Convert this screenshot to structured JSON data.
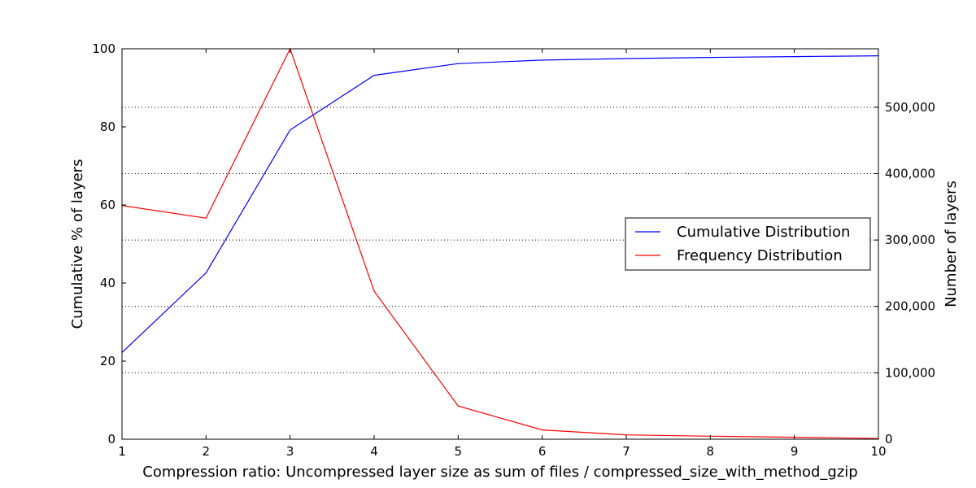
{
  "chart_data": {
    "type": "line",
    "xlabel": "Compression ratio: Uncompressed layer size as sum of files / compressed_size_with_method_gzip",
    "ylabel": "Cumulative % of layers",
    "y2label": "Number of layers",
    "x": [
      1,
      2,
      3,
      4,
      5,
      6,
      7,
      8,
      9,
      10
    ],
    "xlim": [
      1,
      10
    ],
    "ylim": [
      0,
      100
    ],
    "y2lim": [
      0,
      588000
    ],
    "x_ticks": [
      "1",
      "2",
      "3",
      "4",
      "5",
      "6",
      "7",
      "8",
      "9",
      "10"
    ],
    "y_ticks": [
      "0",
      "20",
      "40",
      "60",
      "80",
      "100"
    ],
    "y2_ticks": [
      "0",
      "100,000",
      "200,000",
      "300,000",
      "400,000",
      "500,000"
    ],
    "grid": "horizontal dotted (secondary axis)",
    "legend_position": "center-right",
    "series": [
      {
        "name": "Cumulative Distribution",
        "axis": "left",
        "color": "#0000ff",
        "values": [
          22.2,
          42.6,
          79.2,
          93.2,
          96.2,
          97.1,
          97.5,
          97.8,
          98.0,
          98.2
        ]
      },
      {
        "name": "Frequency Distribution",
        "axis": "right",
        "color": "#ff0000",
        "values": [
          352000,
          333000,
          588000,
          223000,
          50000,
          14000,
          6500,
          4500,
          3000,
          1000
        ]
      }
    ]
  }
}
